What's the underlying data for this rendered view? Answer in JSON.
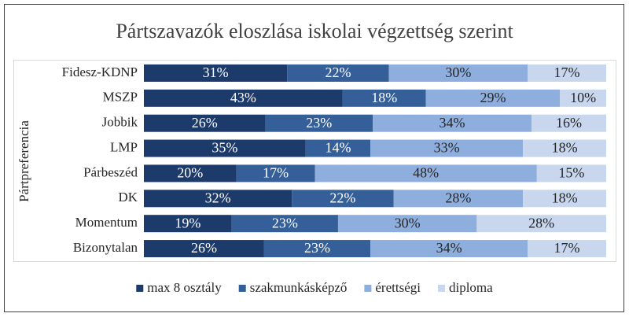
{
  "chart_data": {
    "type": "stacked-bar-100",
    "orientation": "horizontal",
    "title": "Pártszavazók eloszlása iskolai végzettség szerint",
    "y_label": "Pártpreferencia",
    "categories": [
      "Fidesz-KDNP",
      "MSZP",
      "Jobbik",
      "LMP",
      "Párbeszéd",
      "DK",
      "Momentum",
      "Bizonytalan"
    ],
    "series": [
      {
        "name": "max 8 osztály",
        "color": "#1c3a6a",
        "values": [
          31,
          43,
          26,
          35,
          20,
          32,
          19,
          26
        ],
        "value_labels": [
          "31%",
          "43%",
          "26%",
          "35%",
          "20%",
          "32%",
          "19%",
          "26%"
        ]
      },
      {
        "name": "szakmunkásképző",
        "color": "#355f98",
        "values": [
          22,
          18,
          23,
          14,
          17,
          22,
          23,
          23
        ],
        "value_labels": [
          "22%",
          "18%",
          "23%",
          "14%",
          "17%",
          "22%",
          "23%",
          "23%"
        ]
      },
      {
        "name": "érettségi",
        "color": "#8eaedd",
        "values": [
          30,
          29,
          34,
          33,
          48,
          28,
          30,
          34
        ],
        "value_labels": [
          "30%",
          "29%",
          "34%",
          "33%",
          "48%",
          "28%",
          "30%",
          "34%"
        ]
      },
      {
        "name": "diploma",
        "color": "#c8d6ee",
        "values": [
          17,
          10,
          16,
          18,
          15,
          18,
          28,
          17
        ],
        "value_labels": [
          "17%",
          "10%",
          "16%",
          "18%",
          "15%",
          "18%",
          "28%",
          "17%"
        ]
      }
    ],
    "legend": "bottom"
  }
}
